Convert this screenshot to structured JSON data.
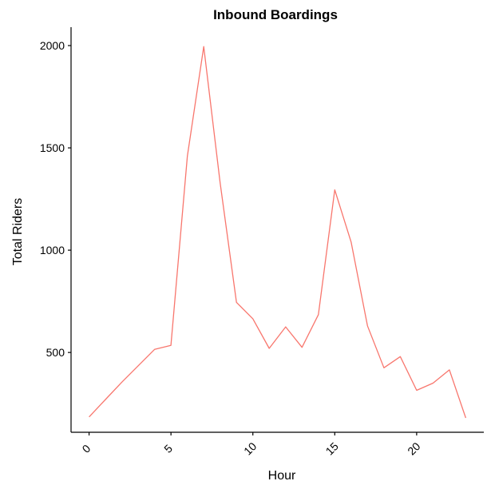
{
  "chart_data": {
    "type": "line",
    "title": "Inbound Boardings",
    "xlabel": "Hour",
    "ylabel": "Total Riders",
    "xlim": [
      -1.1,
      24.1
    ],
    "ylim": [
      110,
      2090
    ],
    "x_ticks": [
      0,
      5,
      10,
      15,
      20
    ],
    "y_ticks": [
      500,
      1000,
      1500,
      2000
    ],
    "x_tick_rotation": -45,
    "grid": false,
    "legend": "none",
    "series": [
      {
        "color": "#F8766D",
        "x": [
          0,
          1,
          2,
          3,
          4,
          5,
          6,
          7,
          8,
          9,
          10,
          11,
          12,
          13,
          14,
          15,
          16,
          17,
          18,
          19,
          20,
          21,
          22,
          23
        ],
        "y": [
          185,
          270,
          355,
          435,
          515,
          535,
          1460,
          1995,
          1330,
          745,
          665,
          520,
          625,
          525,
          685,
          1295,
          1040,
          630,
          425,
          480,
          315,
          350,
          415,
          180
        ]
      }
    ]
  }
}
